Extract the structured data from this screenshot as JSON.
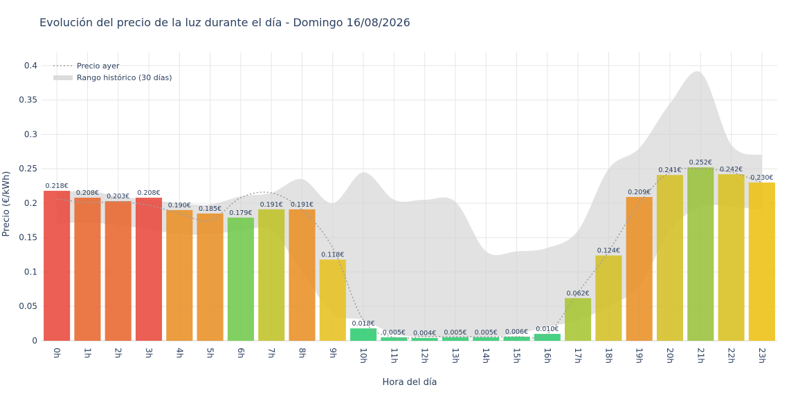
{
  "chart_data": {
    "type": "bar",
    "title": "Evolución del precio de la luz durante el día - Domingo 16/08/2026",
    "xlabel": "Hora del día",
    "ylabel": "Precio (€/kWh)",
    "ylim": [
      0,
      0.42
    ],
    "yticks": [
      {
        "value": 0,
        "label": "0"
      },
      {
        "value": 0.05,
        "label": "0.05"
      },
      {
        "value": 0.1,
        "label": "0.1"
      },
      {
        "value": 0.15,
        "label": "0.15"
      },
      {
        "value": 0.2,
        "label": "0.2"
      },
      {
        "value": 0.25,
        "label": "0.25"
      },
      {
        "value": 0.3,
        "label": "0.3"
      },
      {
        "value": 0.35,
        "label": "0.35"
      },
      {
        "value": 0.4,
        "label": "0.4"
      }
    ],
    "categories": [
      "0h",
      "1h",
      "2h",
      "3h",
      "4h",
      "5h",
      "6h",
      "7h",
      "8h",
      "9h",
      "10h",
      "11h",
      "12h",
      "13h",
      "14h",
      "15h",
      "16h",
      "17h",
      "18h",
      "19h",
      "20h",
      "21h",
      "22h",
      "23h"
    ],
    "values": [
      0.218,
      0.208,
      0.203,
      0.208,
      0.19,
      0.185,
      0.179,
      0.191,
      0.191,
      0.118,
      0.018,
      0.005,
      0.004,
      0.005,
      0.005,
      0.006,
      0.01,
      0.062,
      0.124,
      0.209,
      0.241,
      0.252,
      0.242,
      0.23
    ],
    "value_labels": [
      "0.218€",
      "0.208€",
      "0.203€",
      "0.208€",
      "0.190€",
      "0.185€",
      "0.179€",
      "0.191€",
      "0.191€",
      "0.118€",
      "0.018€",
      "0.005€",
      "0.004€",
      "0.005€",
      "0.005€",
      "0.006€",
      "0.010€",
      "0.062€",
      "0.124€",
      "0.209€",
      "0.241€",
      "0.252€",
      "0.242€",
      "0.230€"
    ],
    "bar_colors": [
      "#e8493d",
      "#e8662f",
      "#e8662f",
      "#e8493d",
      "#e88f26",
      "#e88f26",
      "#6fc94b",
      "#bfc327",
      "#e88f26",
      "#e6c220",
      "#2ecc71",
      "#2ecc71",
      "#2ecc71",
      "#2ecc71",
      "#2ecc71",
      "#2ecc71",
      "#2ecc71",
      "#a7c532",
      "#d4bf25",
      "#e88f26",
      "#d4bf25",
      "#99c23a",
      "#d8c020",
      "#ecc011"
    ],
    "series": [
      {
        "name": "Precio ayer",
        "style": "dotted-line",
        "color": "#9e9e9e",
        "values": [
          0.206,
          0.201,
          0.202,
          0.197,
          0.185,
          0.175,
          0.208,
          0.215,
          0.19,
          0.135,
          0.03,
          0.005,
          0.006,
          0.006,
          0.006,
          0.006,
          0.01,
          0.07,
          0.13,
          0.2,
          0.245,
          0.25,
          0.245,
          0.23
        ]
      },
      {
        "name": "Rango histórico (30 días)",
        "style": "band",
        "color": "#d3d3d3",
        "lower": [
          0.17,
          0.172,
          0.168,
          0.162,
          0.155,
          0.155,
          0.16,
          0.16,
          0.1,
          0.04,
          0.03,
          0.01,
          0.005,
          0.005,
          0.005,
          0.01,
          0.02,
          0.03,
          0.05,
          0.08,
          0.16,
          0.195,
          0.195,
          0.19
        ],
        "upper": [
          0.215,
          0.218,
          0.21,
          0.205,
          0.2,
          0.198,
          0.21,
          0.215,
          0.235,
          0.2,
          0.245,
          0.205,
          0.205,
          0.202,
          0.13,
          0.13,
          0.135,
          0.16,
          0.25,
          0.28,
          0.345,
          0.39,
          0.285,
          0.27
        ]
      }
    ],
    "legend_position": "top-left",
    "grid": true
  }
}
